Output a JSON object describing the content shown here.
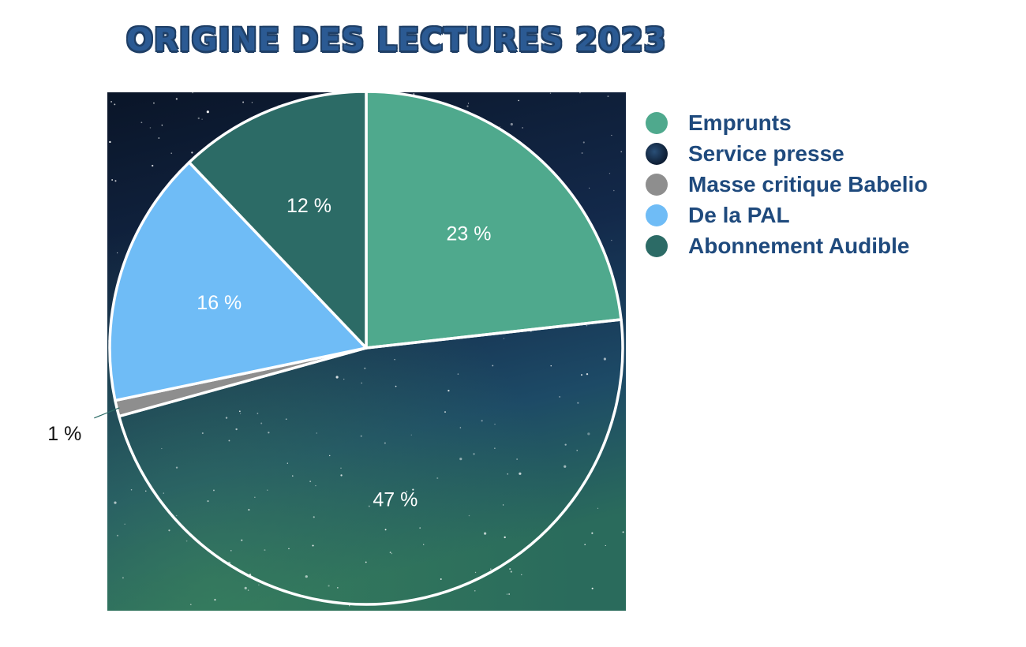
{
  "chart_data": {
    "type": "pie",
    "title": "ORIGINE DES LECTURES 2023",
    "slices": [
      {
        "name": "Emprunts",
        "value": 23,
        "label": "23 %",
        "color": "#4fa98d"
      },
      {
        "name": "Service presse",
        "value": 47,
        "label": "47 %",
        "color": "#16304f"
      },
      {
        "name": "Masse critique Babelio",
        "value": 1,
        "label": "1 %",
        "color": "#8e8e8e"
      },
      {
        "name": "De la PAL",
        "value": 16,
        "label": "16 %",
        "color": "#6fbcf6"
      },
      {
        "name": "Abonnement Audible",
        "value": 12,
        "label": "12 %",
        "color": "#2c6b66"
      }
    ],
    "legend_position": "right",
    "background": "starry night sky"
  }
}
